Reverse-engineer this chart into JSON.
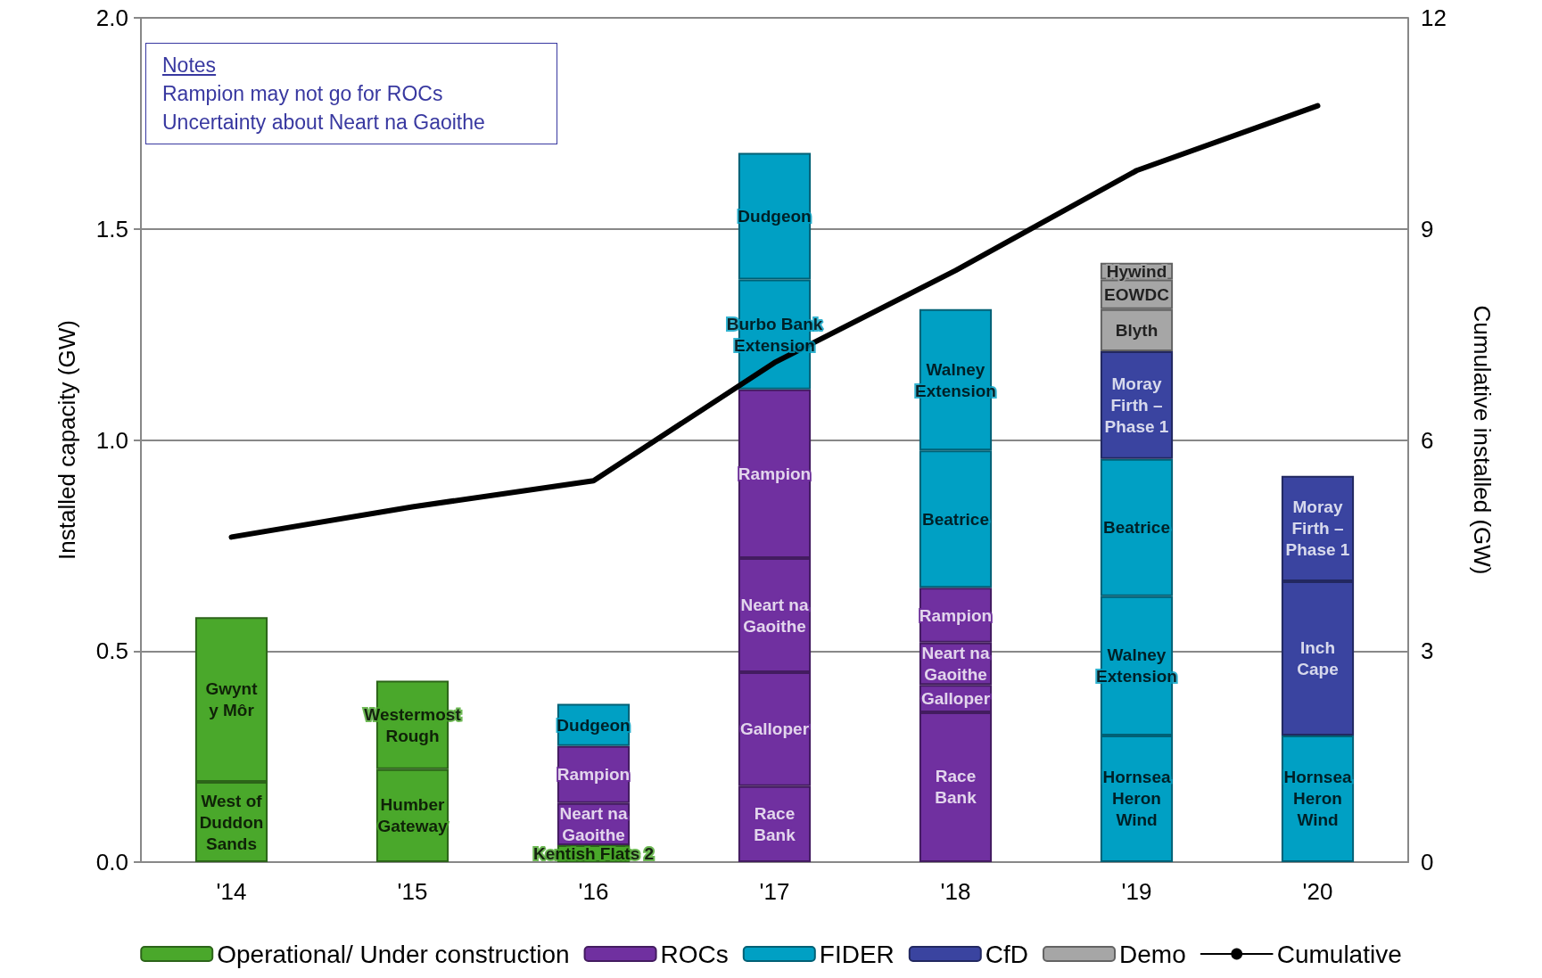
{
  "chart_data": {
    "type": "bar",
    "stacked": true,
    "categories": [
      "'14",
      "'15",
      "'16",
      "'17",
      "'18",
      "'19",
      "'20"
    ],
    "ylabel": "Installed capacity (GW)",
    "y2label": "Cumulative installed (GW)",
    "ylim": [
      0,
      2
    ],
    "yticks": [
      {
        "value": 0,
        "label": "0.0"
      },
      {
        "value": 0.5,
        "label": "0.5"
      },
      {
        "value": 1,
        "label": "1.0"
      },
      {
        "value": 1.5,
        "label": "1.5"
      },
      {
        "value": 2,
        "label": "2.0"
      }
    ],
    "y2lim": [
      0,
      12
    ],
    "y2ticks": [
      0,
      3,
      6,
      9,
      12
    ],
    "grid": "y",
    "legend": "bottom",
    "series": [
      {
        "name": "Operational/ Under construction",
        "color": "#4aa82b",
        "values": [
          0.19,
          0.22,
          0.04,
          null,
          null,
          null,
          null
        ],
        "value_labels": [
          "West of\nDuddon\nSands",
          "Humber\nGateway",
          "Kentish Flats 2",
          null,
          null,
          null,
          null
        ]
      },
      {
        "color": "#4aa82b",
        "values": [
          0.39,
          0.21,
          null,
          null,
          null,
          null,
          null
        ],
        "value_labels": [
          "Gwynt\ny Môr",
          "Westermost\nRough",
          null,
          null,
          null,
          null,
          null
        ]
      },
      {
        "name": "ROCs",
        "color": "#7030a0",
        "values": [
          null,
          null,
          0.1,
          0.18,
          0.355,
          null,
          null
        ],
        "value_labels": [
          null,
          null,
          "Neart na\nGaoithe",
          "Race\nBank",
          "Race\nBank",
          null,
          null
        ]
      },
      {
        "color": "#7030a0",
        "values": [
          null,
          null,
          0.135,
          0.27,
          0.065,
          null,
          null
        ],
        "value_labels": [
          null,
          null,
          "Rampion",
          "Galloper",
          "Galloper",
          null,
          null
        ]
      },
      {
        "color": "#7030a0",
        "values": [
          null,
          null,
          null,
          0.27,
          0.1,
          null,
          null
        ],
        "value_labels": [
          null,
          null,
          null,
          "Neart na\nGaoithe",
          "Neart na\nGaoithe",
          null,
          null
        ]
      },
      {
        "color": "#7030a0",
        "values": [
          null,
          null,
          null,
          0.4,
          0.13,
          null,
          null
        ],
        "value_labels": [
          null,
          null,
          null,
          "Rampion",
          "Rampion",
          null,
          null
        ]
      },
      {
        "name": "FIDER",
        "color": "#00a0c4",
        "values": [
          null,
          null,
          0.1,
          0.26,
          0.325,
          0.3,
          0.3
        ],
        "value_labels": [
          null,
          null,
          "Dudgeon",
          "Burbo Bank\nExtension",
          "Beatrice",
          "Hornsea\nHeron\nWind",
          "Hornsea\nHeron\nWind"
        ]
      },
      {
        "color": "#00a0c4",
        "values": [
          null,
          null,
          null,
          0.3,
          0.335,
          0.33,
          null
        ],
        "value_labels": [
          null,
          null,
          null,
          "Dudgeon",
          "Walney\nExtension",
          "Walney\nExtension",
          null
        ]
      },
      {
        "color": "#00a0c4",
        "values": [
          null,
          null,
          null,
          null,
          null,
          0.325,
          null
        ],
        "value_labels": [
          null,
          null,
          null,
          null,
          null,
          "Beatrice",
          null
        ]
      },
      {
        "name": "CfD",
        "color": "#3a44a0",
        "values": [
          null,
          null,
          null,
          null,
          null,
          0.255,
          0.365
        ],
        "value_labels": [
          null,
          null,
          null,
          null,
          null,
          "Moray\nFirth –\nPhase 1",
          "Inch\nCape"
        ]
      },
      {
        "color": "#3a44a0",
        "values": [
          null,
          null,
          null,
          null,
          null,
          null,
          0.25
        ],
        "value_labels": [
          null,
          null,
          null,
          null,
          null,
          null,
          "Moray\nFirth –\nPhase 1"
        ]
      },
      {
        "name": "Demo",
        "color": "#a6a6a6",
        "values": [
          null,
          null,
          null,
          null,
          null,
          0.1,
          null
        ],
        "value_labels": [
          null,
          null,
          null,
          null,
          null,
          "Blyth",
          null
        ]
      },
      {
        "color": "#a6a6a6",
        "values": [
          null,
          null,
          null,
          null,
          null,
          0.07,
          null
        ],
        "value_labels": [
          null,
          null,
          null,
          null,
          null,
          "EOWDC",
          null
        ]
      },
      {
        "color": "#a6a6a6",
        "values": [
          null,
          null,
          null,
          null,
          null,
          0.04,
          null
        ],
        "value_labels": [
          null,
          null,
          null,
          null,
          null,
          "Hywind",
          null
        ]
      },
      {
        "name": "Cumulative",
        "type": "line",
        "axis": "y2",
        "color": "#000000",
        "marker": "none",
        "values": [
          4.62,
          5.05,
          5.42,
          7.1,
          8.41,
          9.83,
          10.75
        ]
      }
    ],
    "annotations": [
      "Notes",
      "Rampion may not go for ROCs",
      "Uncertainty about Neart na Gaoithe"
    ]
  }
}
